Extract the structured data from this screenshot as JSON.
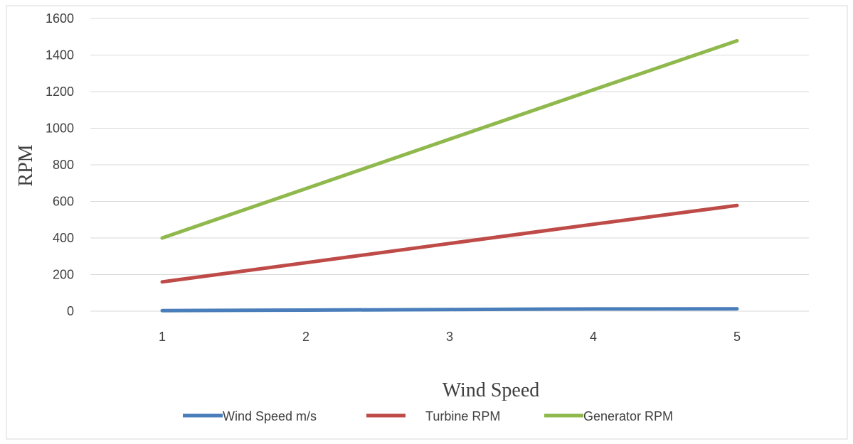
{
  "chart_data": {
    "type": "line",
    "title": "",
    "xlabel": "Wind Speed",
    "ylabel": "RPM",
    "categories": [
      "1",
      "2",
      "3",
      "4",
      "5"
    ],
    "yticks": [
      "0",
      "200",
      "400",
      "600",
      "800",
      "1000",
      "1200",
      "1400",
      "1600"
    ],
    "ylim": [
      0,
      1600
    ],
    "grid": true,
    "legend_position": "bottom",
    "series": [
      {
        "name": "Wind Speed m/s",
        "color": "#4a7ebb",
        "values": [
          3,
          6,
          9,
          12,
          13
        ]
      },
      {
        "name": "Turbine RPM",
        "color": "#be4b48",
        "values": [
          160,
          265,
          370,
          475,
          578
        ]
      },
      {
        "name": "Generator RPM",
        "color": "#8fb84d",
        "values": [
          400,
          670,
          940,
          1210,
          1478
        ]
      }
    ]
  }
}
